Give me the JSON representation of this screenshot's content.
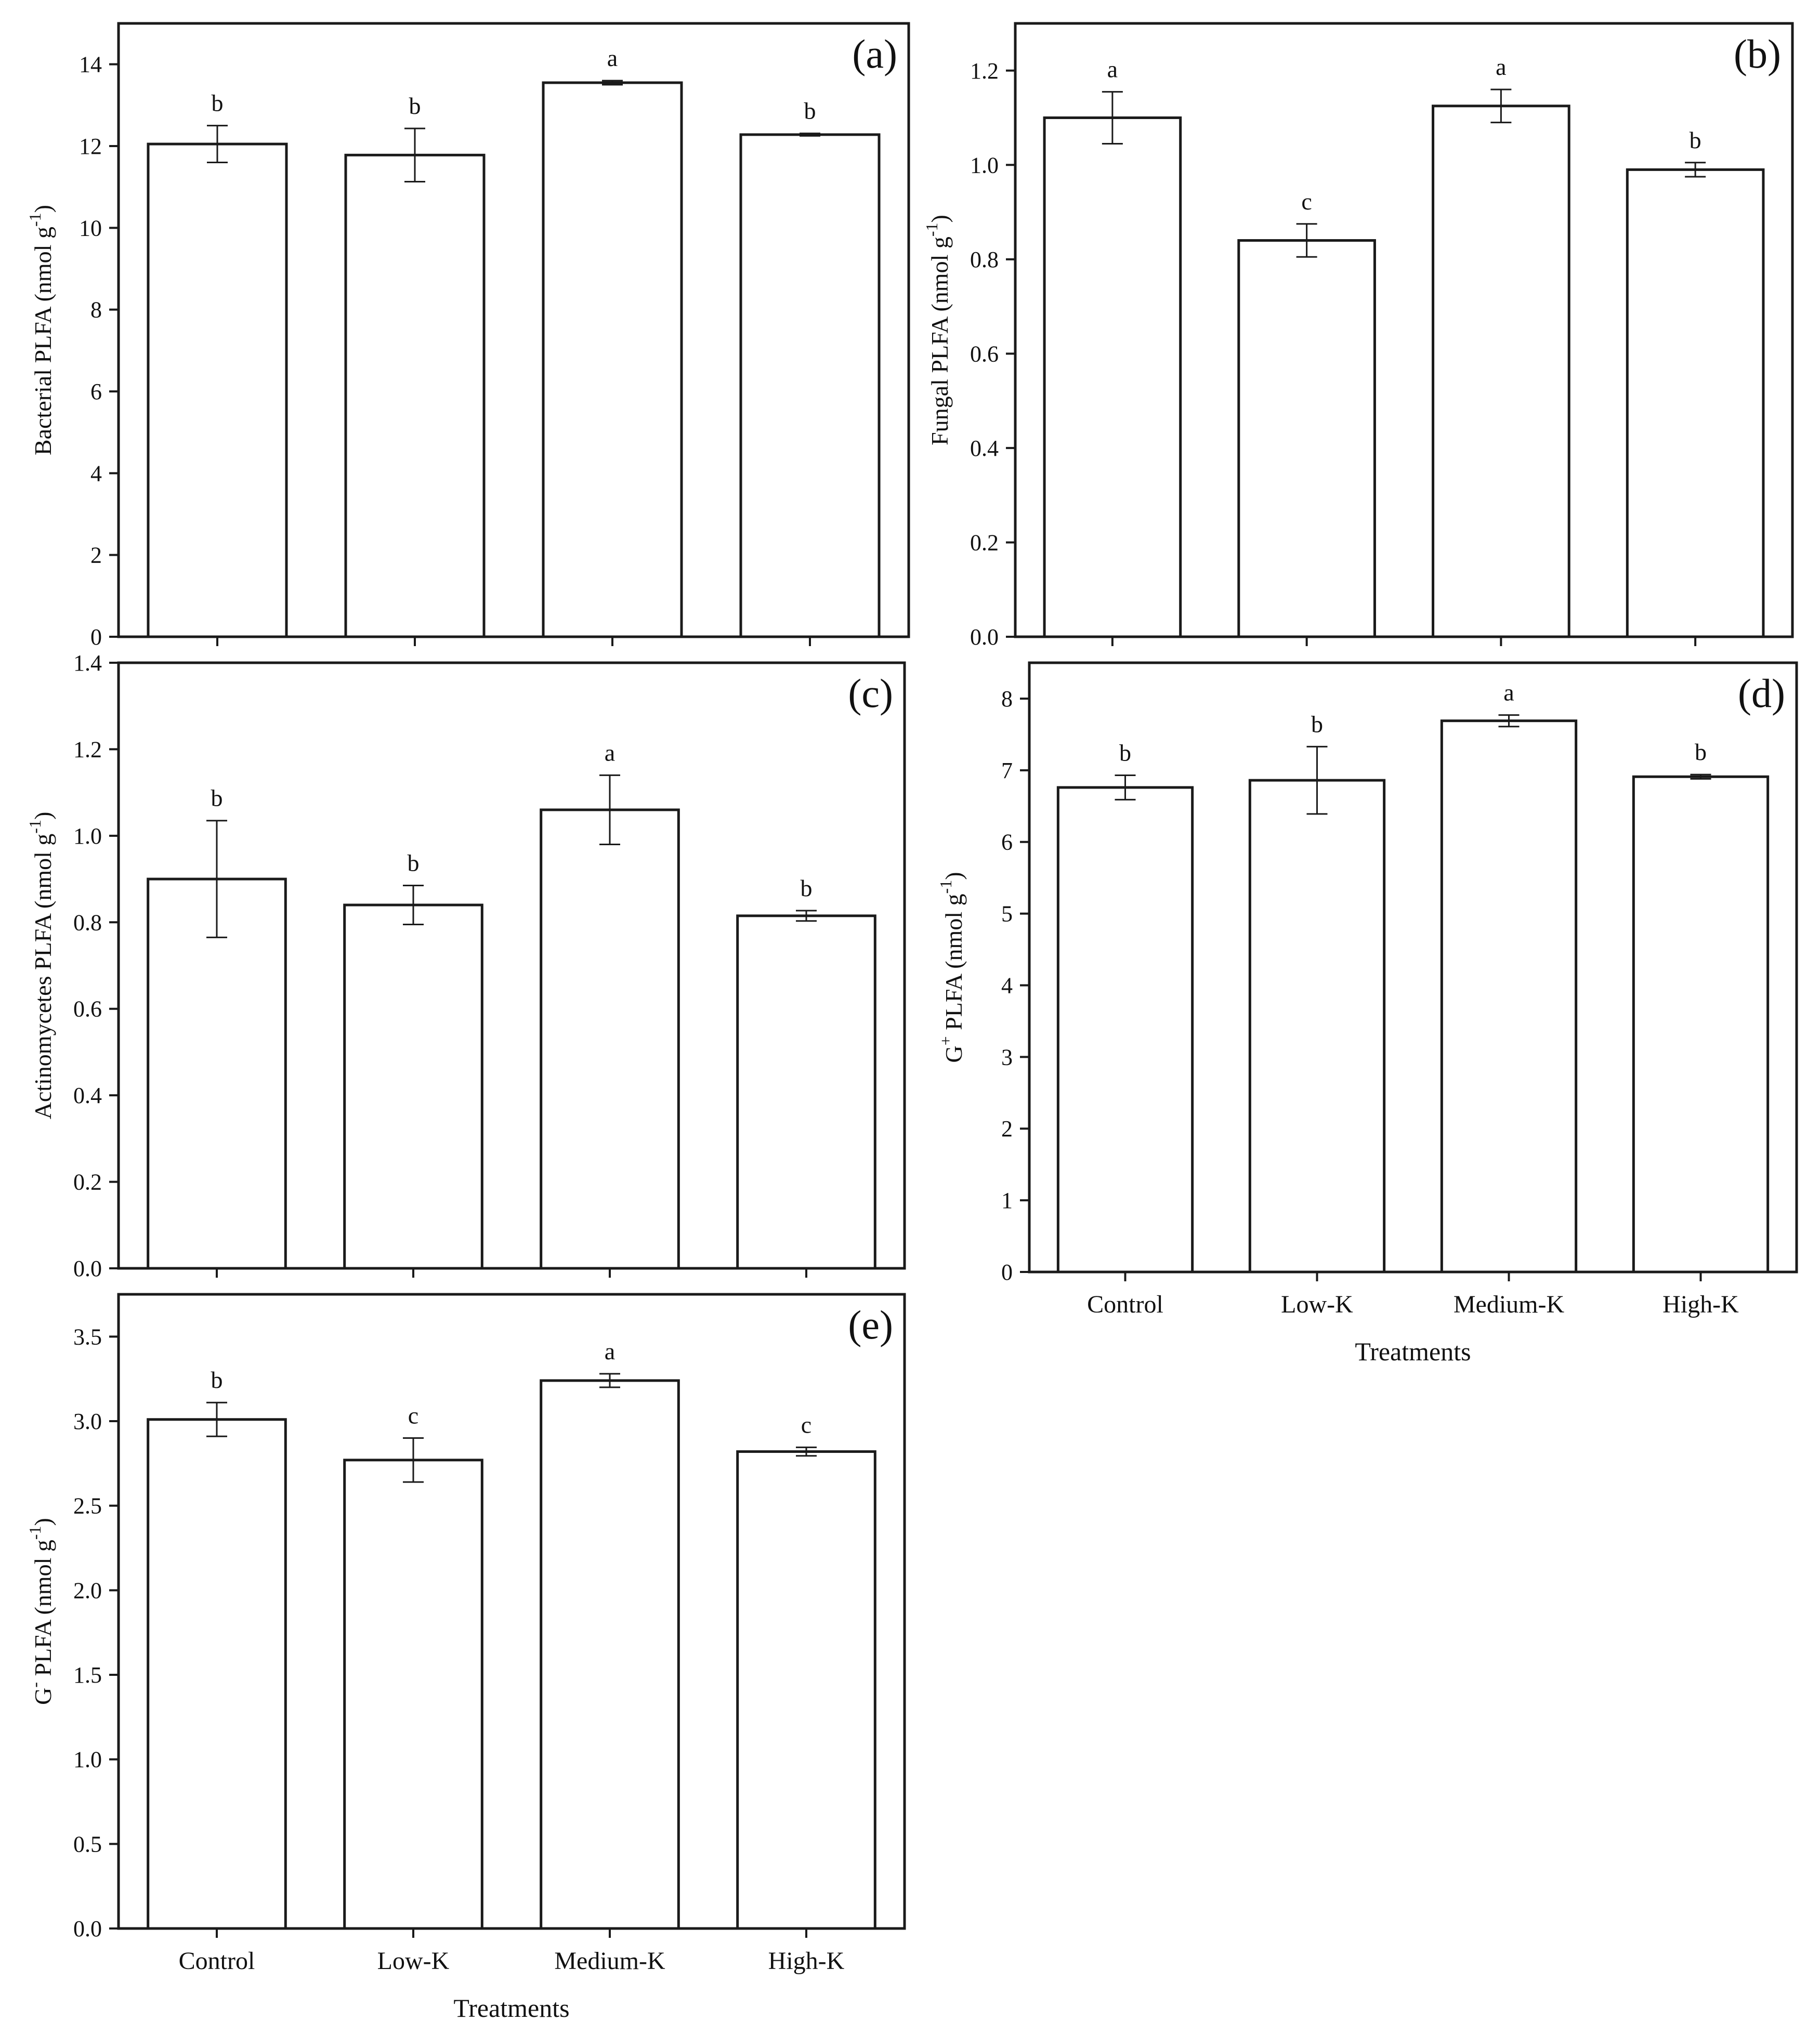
{
  "colors": {
    "bar_fill": "#ffffff",
    "stroke": "#1a1a1a"
  },
  "chart_data": [
    {
      "type": "bar",
      "panel_label": "(a)",
      "categories": [
        "Control",
        "Low-K",
        "Medium-K",
        "High-K"
      ],
      "values": [
        12.05,
        11.78,
        13.55,
        12.28
      ],
      "errors": [
        0.45,
        0.65,
        0.05,
        0.03
      ],
      "letters": [
        "b",
        "b",
        "a",
        "b"
      ],
      "ylabel": "Bacterial PLFA (nmol g",
      "ylabel_sup": "-1",
      "ylabel_tail": ")",
      "ylim": [
        0,
        15
      ],
      "yticks": [
        0,
        2,
        4,
        6,
        8,
        10,
        12,
        14
      ],
      "tick_decimals": 0,
      "xlabel": "",
      "show_xticklabels": false
    },
    {
      "type": "bar",
      "panel_label": "(b)",
      "categories": [
        "Control",
        "Low-K",
        "Medium-K",
        "High-K"
      ],
      "values": [
        1.1,
        0.84,
        1.125,
        0.99
      ],
      "errors": [
        0.055,
        0.035,
        0.035,
        0.015
      ],
      "letters": [
        "a",
        "c",
        "a",
        "b"
      ],
      "ylabel": "Fungal PLFA (nmol g",
      "ylabel_sup": "-1",
      "ylabel_tail": ")",
      "ylim": [
        0,
        1.3
      ],
      "yticks": [
        0.0,
        0.2,
        0.4,
        0.6,
        0.8,
        1.0,
        1.2
      ],
      "tick_decimals": 1,
      "xlabel": "",
      "show_xticklabels": false
    },
    {
      "type": "bar",
      "panel_label": "(c)",
      "categories": [
        "Control",
        "Low-K",
        "Medium-K",
        "High-K"
      ],
      "values": [
        0.9,
        0.84,
        1.06,
        0.815
      ],
      "errors": [
        0.135,
        0.045,
        0.08,
        0.012
      ],
      "letters": [
        "b",
        "b",
        "a",
        "b"
      ],
      "ylabel": "Actinomycetes PLFA (nmol g",
      "ylabel_sup": "-1",
      "ylabel_tail": ")",
      "ylim": [
        0,
        1.4
      ],
      "yticks": [
        0.0,
        0.2,
        0.4,
        0.6,
        0.8,
        1.0,
        1.2,
        1.4
      ],
      "tick_decimals": 1,
      "xlabel": "",
      "show_xticklabels": false
    },
    {
      "type": "bar",
      "panel_label": "(d)",
      "categories": [
        "Control",
        "Low-K",
        "Medium-K",
        "High-K"
      ],
      "values": [
        6.76,
        6.86,
        7.69,
        6.91
      ],
      "errors": [
        0.17,
        0.47,
        0.08,
        0.03
      ],
      "letters": [
        "b",
        "b",
        "a",
        "b"
      ],
      "ylabel": "G",
      "ylabel_sup": "+",
      "ylabel_tail": " PLFA (nmol g",
      "ylabel_sup2": "-1",
      "ylabel_tail2": ")",
      "ylim": [
        0,
        8.5
      ],
      "yticks": [
        0,
        1,
        2,
        3,
        4,
        5,
        6,
        7,
        8
      ],
      "tick_decimals": 0,
      "xlabel": "Treatments",
      "show_xticklabels": true
    },
    {
      "type": "bar",
      "panel_label": "(e)",
      "categories": [
        "Control",
        "Low-K",
        "Medium-K",
        "High-K"
      ],
      "values": [
        3.01,
        2.77,
        3.24,
        2.82
      ],
      "errors": [
        0.1,
        0.13,
        0.04,
        0.025
      ],
      "letters": [
        "b",
        "c",
        "a",
        "c"
      ],
      "ylabel": "G",
      "ylabel_sup": "-",
      "ylabel_tail": " PLFA (nmol g",
      "ylabel_sup2": "-1",
      "ylabel_tail2": ")",
      "ylim": [
        0,
        3.75
      ],
      "yticks": [
        0.0,
        0.5,
        1.0,
        1.5,
        2.0,
        2.5,
        3.0,
        3.5
      ],
      "tick_decimals": 1,
      "xlabel": "Treatments",
      "show_xticklabels": true
    }
  ]
}
